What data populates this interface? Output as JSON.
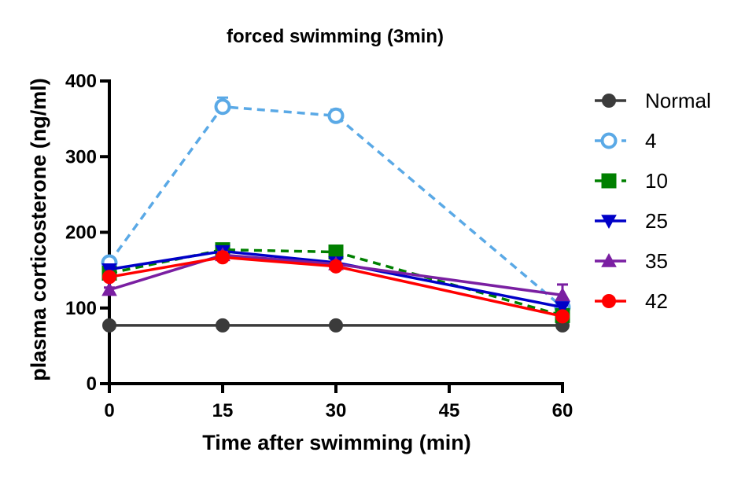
{
  "chart_data": {
    "type": "line",
    "title": "forced  swimming (3min)",
    "xlabel": "Time after swimming (min)",
    "ylabel": "plasma corticosterone (ng/ml)",
    "x": [
      0,
      15,
      30,
      60
    ],
    "xticks": [
      0,
      15,
      30,
      45,
      60
    ],
    "xlim": [
      0,
      60
    ],
    "yticks": [
      0,
      100,
      200,
      300,
      400
    ],
    "ylim": [
      0,
      400
    ],
    "grid": false,
    "legend_position": "right",
    "series": [
      {
        "name": "Normal",
        "values": [
          77,
          77,
          77,
          77
        ],
        "errors": [
          0,
          0,
          0,
          0
        ],
        "color": "#3b3b3b",
        "marker": "circle",
        "dash": "solid",
        "filled": true
      },
      {
        "name": "4",
        "values": [
          160,
          366,
          354,
          101
        ],
        "errors": [
          3,
          12,
          8,
          4
        ],
        "color": "#5aa9e6",
        "marker": "circle-open",
        "dash": "dashed",
        "filled": false
      },
      {
        "name": "10",
        "values": [
          146,
          177,
          174,
          90
        ],
        "errors": [
          3,
          5,
          4,
          3
        ],
        "color": "#008000",
        "marker": "square",
        "dash": "dashed",
        "filled": true
      },
      {
        "name": "25",
        "values": [
          151,
          175,
          160,
          101
        ],
        "errors": [
          2,
          4,
          3,
          3
        ],
        "color": "#0000c8",
        "marker": "triangle-down",
        "dash": "solid",
        "filled": true
      },
      {
        "name": "35",
        "values": [
          124,
          170,
          158,
          117
        ],
        "errors": [
          3,
          4,
          3,
          14
        ],
        "color": "#7a1fa2",
        "marker": "triangle-up",
        "dash": "solid",
        "filled": true
      },
      {
        "name": "42",
        "values": [
          141,
          167,
          155,
          89
        ],
        "errors": [
          2,
          3,
          3,
          3
        ],
        "color": "#ff0000",
        "marker": "circle",
        "dash": "solid",
        "filled": true
      }
    ]
  }
}
